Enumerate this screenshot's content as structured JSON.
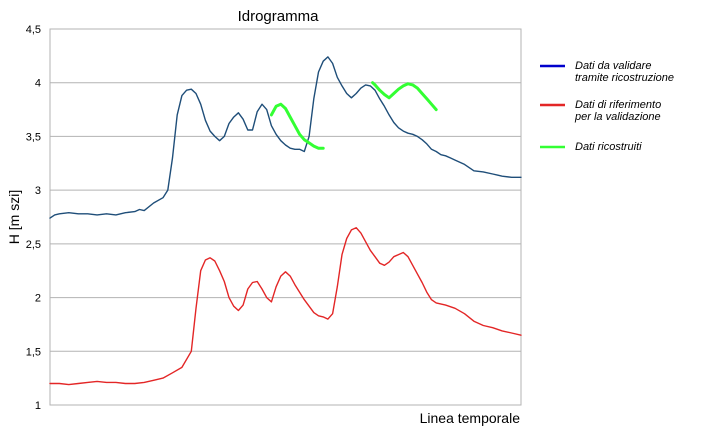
{
  "chart_data": {
    "type": "line",
    "title": "Idrogramma",
    "xlabel": "Linea temporale",
    "ylabel": "H [m szi]",
    "ylim": [
      1,
      4.5
    ],
    "xlim": [
      0,
      100
    ],
    "yticks": [
      1,
      1.5,
      2,
      2.5,
      3,
      3.5,
      4,
      4.5
    ],
    "ytick_labels": [
      "1",
      "1,5",
      "2",
      "2,5",
      "3",
      "3,5",
      "4",
      "4,5"
    ],
    "grid": true,
    "legend_position": "right",
    "series": [
      {
        "name": "Dati da validare tramite ricostruzione",
        "legend_lines": [
          "Dati da validare",
          "tramite ricostruzione"
        ],
        "legend_color": "#0000cc",
        "color": "#1f4e79",
        "x": [
          0,
          1,
          2,
          4,
          6,
          8,
          10,
          12,
          14,
          16,
          18,
          19,
          20,
          22,
          24,
          25,
          26,
          27,
          28,
          29,
          30,
          31,
          32,
          33,
          34,
          35,
          36,
          37,
          38,
          39,
          40,
          41,
          42,
          43,
          44,
          45,
          46,
          47,
          48,
          49,
          50,
          51,
          52,
          53,
          54,
          55,
          56,
          57,
          58,
          59,
          60,
          61,
          62,
          63,
          64,
          65,
          66,
          67,
          68,
          69,
          70,
          71,
          72,
          73,
          74,
          75,
          76,
          77,
          78,
          79,
          80,
          81,
          82,
          83,
          84,
          85,
          86,
          88,
          90,
          92,
          94,
          95,
          96,
          98,
          100
        ],
        "y": [
          2.74,
          2.77,
          2.78,
          2.79,
          2.78,
          2.78,
          2.77,
          2.78,
          2.77,
          2.79,
          2.8,
          2.82,
          2.81,
          2.88,
          2.93,
          3.0,
          3.3,
          3.7,
          3.88,
          3.93,
          3.94,
          3.9,
          3.8,
          3.65,
          3.55,
          3.5,
          3.46,
          3.5,
          3.62,
          3.68,
          3.72,
          3.66,
          3.56,
          3.56,
          3.73,
          3.8,
          3.75,
          3.6,
          3.52,
          3.46,
          3.42,
          3.39,
          3.38,
          3.38,
          3.36,
          3.5,
          3.85,
          4.1,
          4.2,
          4.24,
          4.18,
          4.05,
          3.97,
          3.9,
          3.86,
          3.9,
          3.95,
          3.98,
          3.97,
          3.93,
          3.85,
          3.78,
          3.7,
          3.63,
          3.58,
          3.55,
          3.53,
          3.52,
          3.5,
          3.47,
          3.43,
          3.38,
          3.36,
          3.33,
          3.32,
          3.3,
          3.28,
          3.24,
          3.18,
          3.17,
          3.15,
          3.14,
          3.13,
          3.12,
          3.12
        ]
      },
      {
        "name": "Dati di riferimento per la validazione",
        "legend_lines": [
          "Dati di riferimento",
          "per la validazione"
        ],
        "legend_color": "#e32626",
        "color": "#e32626",
        "x": [
          0,
          2,
          4,
          6,
          8,
          10,
          12,
          14,
          16,
          18,
          20,
          22,
          24,
          26,
          28,
          30,
          31,
          32,
          33,
          34,
          35,
          36,
          37,
          38,
          39,
          40,
          41,
          42,
          43,
          44,
          45,
          46,
          47,
          48,
          49,
          50,
          51,
          52,
          53,
          54,
          55,
          56,
          57,
          58,
          59,
          60,
          61,
          62,
          63,
          64,
          65,
          66,
          67,
          68,
          69,
          70,
          71,
          72,
          73,
          74,
          75,
          76,
          77,
          78,
          79,
          80,
          81,
          82,
          84,
          86,
          88,
          90,
          92,
          94,
          96,
          98,
          100
        ],
        "y": [
          1.2,
          1.2,
          1.19,
          1.2,
          1.21,
          1.22,
          1.21,
          1.21,
          1.2,
          1.2,
          1.21,
          1.23,
          1.25,
          1.3,
          1.35,
          1.5,
          1.9,
          2.25,
          2.35,
          2.37,
          2.34,
          2.25,
          2.15,
          2.0,
          1.92,
          1.88,
          1.93,
          2.08,
          2.14,
          2.15,
          2.08,
          2.0,
          1.96,
          2.1,
          2.2,
          2.24,
          2.2,
          2.12,
          2.05,
          1.98,
          1.92,
          1.86,
          1.83,
          1.82,
          1.8,
          1.85,
          2.1,
          2.4,
          2.55,
          2.63,
          2.65,
          2.6,
          2.52,
          2.44,
          2.38,
          2.32,
          2.3,
          2.33,
          2.38,
          2.4,
          2.42,
          2.38,
          2.3,
          2.22,
          2.14,
          2.05,
          1.98,
          1.95,
          1.93,
          1.9,
          1.85,
          1.78,
          1.74,
          1.72,
          1.69,
          1.67,
          1.65
        ]
      },
      {
        "name": "Dati ricostruiti",
        "legend_lines": [
          "Dati ricostruiti"
        ],
        "legend_color": "#33ff33",
        "color": "#33ff33",
        "segments": [
          {
            "x": [
              47,
              48,
              49,
              50,
              51,
              52,
              53,
              54,
              55,
              56,
              57,
              58
            ],
            "y": [
              3.7,
              3.78,
              3.8,
              3.76,
              3.68,
              3.6,
              3.52,
              3.47,
              3.44,
              3.41,
              3.39,
              3.39
            ]
          },
          {
            "x": [
              68.5,
              69,
              70,
              71,
              72,
              73,
              74,
              75,
              76,
              77,
              78,
              79,
              80,
              81,
              82
            ],
            "y": [
              4.0,
              3.98,
              3.93,
              3.89,
              3.86,
              3.9,
              3.94,
              3.97,
              3.99,
              3.98,
              3.95,
              3.9,
              3.85,
              3.8,
              3.75
            ]
          }
        ]
      }
    ]
  }
}
